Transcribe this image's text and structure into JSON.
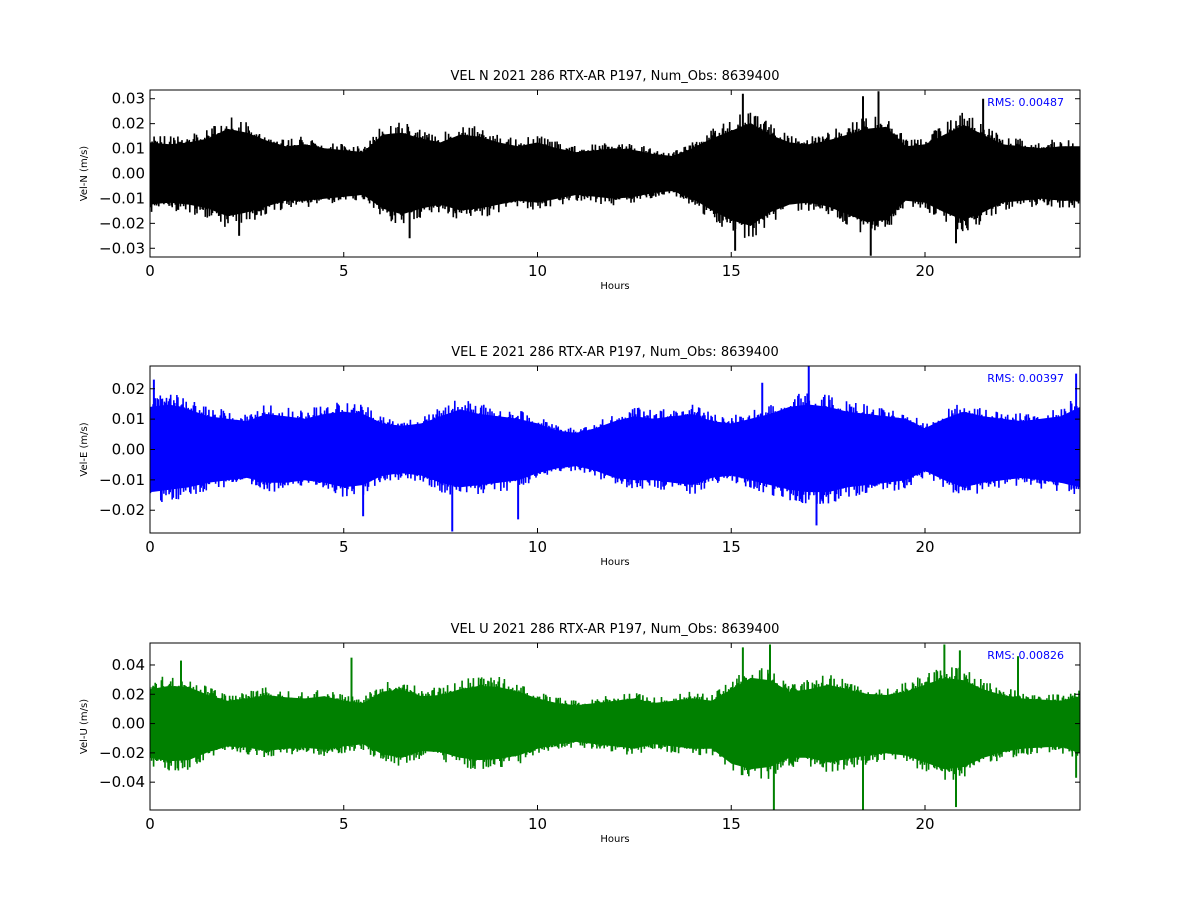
{
  "chart_data": [
    {
      "type": "line",
      "title": "VEL N 2021 286 RTX-AR  P197, Num_Obs: 8639400",
      "xlabel": "Hours",
      "ylabel": "Vel-N (m/s)",
      "xlim": [
        0,
        24
      ],
      "ylim": [
        -0.0335,
        0.0335
      ],
      "xticks": [
        0,
        5,
        10,
        15,
        20
      ],
      "xtick_labels": [
        "0",
        "5",
        "10",
        "15",
        "20"
      ],
      "yticks": [
        -0.03,
        -0.02,
        -0.01,
        0.0,
        0.01,
        0.02,
        0.03
      ],
      "ytick_labels": [
        "−0.03",
        "−0.02",
        "−0.01",
        "0.00",
        "0.01",
        "0.02",
        "0.03"
      ],
      "grid": false,
      "annotation": "RMS:  0.00487",
      "series": [
        {
          "color": "#000000",
          "x": [
            0,
            0.5,
            1,
            1.5,
            2,
            2.5,
            3,
            3.5,
            4,
            4.5,
            5,
            5.5,
            6,
            6.5,
            7,
            7.5,
            8,
            8.5,
            9,
            9.5,
            10,
            10.5,
            11,
            11.5,
            12,
            12.5,
            13,
            13.5,
            14,
            14.5,
            15,
            15.5,
            16,
            16.5,
            17,
            17.5,
            18,
            18.5,
            19,
            19.5,
            20,
            20.5,
            21,
            21.5,
            22,
            22.5,
            23,
            23.5,
            24
          ],
          "upper": [
            0.016,
            0.015,
            0.016,
            0.018,
            0.023,
            0.021,
            0.017,
            0.014,
            0.015,
            0.013,
            0.012,
            0.011,
            0.02,
            0.021,
            0.018,
            0.016,
            0.02,
            0.019,
            0.016,
            0.014,
            0.016,
            0.013,
            0.011,
            0.012,
            0.013,
            0.012,
            0.01,
            0.009,
            0.013,
            0.018,
            0.022,
            0.026,
            0.02,
            0.016,
            0.015,
            0.017,
            0.02,
            0.023,
            0.024,
            0.014,
            0.015,
            0.02,
            0.025,
            0.02,
            0.015,
            0.014,
            0.013,
            0.014,
            0.014
          ],
          "lower": [
            -0.016,
            -0.015,
            -0.016,
            -0.018,
            -0.022,
            -0.02,
            -0.017,
            -0.014,
            -0.014,
            -0.013,
            -0.012,
            -0.011,
            -0.018,
            -0.021,
            -0.018,
            -0.016,
            -0.019,
            -0.018,
            -0.016,
            -0.014,
            -0.015,
            -0.013,
            -0.011,
            -0.012,
            -0.013,
            -0.012,
            -0.01,
            -0.009,
            -0.013,
            -0.019,
            -0.024,
            -0.027,
            -0.02,
            -0.016,
            -0.015,
            -0.017,
            -0.021,
            -0.025,
            -0.024,
            -0.014,
            -0.015,
            -0.02,
            -0.024,
            -0.02,
            -0.015,
            -0.014,
            -0.013,
            -0.014,
            -0.014
          ],
          "spikes": [
            [
              15.3,
              0.032
            ],
            [
              15.1,
              -0.031
            ],
            [
              18.6,
              -0.033
            ],
            [
              18.8,
              0.033
            ],
            [
              18.4,
              0.031
            ],
            [
              20.8,
              -0.028
            ],
            [
              21.5,
              0.03
            ],
            [
              6.7,
              -0.026
            ],
            [
              2.3,
              -0.025
            ]
          ]
        }
      ]
    },
    {
      "type": "line",
      "title": "VEL E 2021 286 RTX-AR  P197, Num_Obs: 8639400",
      "xlabel": "Hours",
      "ylabel": "Vel-E (m/s)",
      "xlim": [
        0,
        24
      ],
      "ylim": [
        -0.0275,
        0.0275
      ],
      "xticks": [
        0,
        5,
        10,
        15,
        20
      ],
      "xtick_labels": [
        "0",
        "5",
        "10",
        "15",
        "20"
      ],
      "yticks": [
        -0.02,
        -0.01,
        0.0,
        0.01,
        0.02
      ],
      "ytick_labels": [
        "−0.02",
        "−0.01",
        "0.00",
        "0.01",
        "0.02"
      ],
      "grid": false,
      "annotation": "RMS:  0.00397",
      "series": [
        {
          "color": "#0000ff",
          "x": [
            0,
            0.5,
            1,
            1.5,
            2,
            2.5,
            3,
            3.5,
            4,
            4.5,
            5,
            5.5,
            6,
            6.5,
            7,
            7.5,
            8,
            8.5,
            9,
            9.5,
            10,
            10.5,
            11,
            11.5,
            12,
            12.5,
            13,
            13.5,
            14,
            14.5,
            15,
            15.5,
            16,
            16.5,
            17,
            17.5,
            18,
            18.5,
            19,
            19.5,
            20,
            20.5,
            21,
            21.5,
            22,
            22.5,
            23,
            23.5,
            24
          ],
          "upper": [
            0.018,
            0.019,
            0.017,
            0.014,
            0.013,
            0.012,
            0.015,
            0.014,
            0.013,
            0.015,
            0.016,
            0.015,
            0.011,
            0.01,
            0.011,
            0.014,
            0.017,
            0.015,
            0.014,
            0.013,
            0.011,
            0.008,
            0.007,
            0.009,
            0.012,
            0.014,
            0.013,
            0.014,
            0.015,
            0.012,
            0.011,
            0.013,
            0.015,
            0.018,
            0.019,
            0.018,
            0.016,
            0.015,
            0.014,
            0.013,
            0.009,
            0.013,
            0.016,
            0.014,
            0.013,
            0.012,
            0.013,
            0.014,
            0.018
          ],
          "lower": [
            -0.018,
            -0.017,
            -0.016,
            -0.014,
            -0.013,
            -0.012,
            -0.014,
            -0.014,
            -0.013,
            -0.014,
            -0.016,
            -0.015,
            -0.011,
            -0.01,
            -0.011,
            -0.014,
            -0.016,
            -0.015,
            -0.014,
            -0.013,
            -0.01,
            -0.008,
            -0.007,
            -0.009,
            -0.012,
            -0.013,
            -0.013,
            -0.014,
            -0.015,
            -0.012,
            -0.011,
            -0.013,
            -0.015,
            -0.017,
            -0.018,
            -0.018,
            -0.016,
            -0.015,
            -0.014,
            -0.013,
            -0.009,
            -0.013,
            -0.016,
            -0.014,
            -0.013,
            -0.012,
            -0.013,
            -0.014,
            -0.016
          ],
          "spikes": [
            [
              17.0,
              0.028
            ],
            [
              17.2,
              -0.025
            ],
            [
              7.8,
              -0.027
            ],
            [
              9.5,
              -0.023
            ],
            [
              5.5,
              -0.022
            ],
            [
              23.9,
              0.025
            ],
            [
              15.8,
              0.022
            ],
            [
              0.1,
              0.023
            ]
          ]
        }
      ]
    },
    {
      "type": "line",
      "title": "VEL U 2021 286 RTX-AR  P197, Num_Obs: 8639400",
      "xlabel": "Hours",
      "ylabel": "Vel-U (m/s)",
      "xlim": [
        0,
        24
      ],
      "ylim": [
        -0.059,
        0.055
      ],
      "xticks": [
        0,
        5,
        10,
        15,
        20
      ],
      "xtick_labels": [
        "0",
        "5",
        "10",
        "15",
        "20"
      ],
      "yticks": [
        -0.04,
        -0.02,
        0.0,
        0.02,
        0.04
      ],
      "ytick_labels": [
        "−0.04",
        "−0.02",
        "0.00",
        "0.02",
        "0.04"
      ],
      "grid": false,
      "annotation": "RMS:  0.00826",
      "series": [
        {
          "color": "#008000",
          "x": [
            0,
            0.5,
            1,
            1.5,
            2,
            2.5,
            3,
            3.5,
            4,
            4.5,
            5,
            5.5,
            6,
            6.5,
            7,
            7.5,
            8,
            8.5,
            9,
            9.5,
            10,
            10.5,
            11,
            11.5,
            12,
            12.5,
            13,
            13.5,
            14,
            14.5,
            15,
            15.5,
            16,
            16.5,
            17,
            17.5,
            18,
            18.5,
            19,
            19.5,
            20,
            20.5,
            21,
            21.5,
            22,
            22.5,
            23,
            23.5,
            24
          ],
          "upper": [
            0.03,
            0.033,
            0.032,
            0.025,
            0.02,
            0.022,
            0.025,
            0.023,
            0.022,
            0.024,
            0.02,
            0.018,
            0.028,
            0.03,
            0.024,
            0.025,
            0.03,
            0.033,
            0.032,
            0.028,
            0.022,
            0.018,
            0.016,
            0.018,
            0.02,
            0.022,
            0.018,
            0.02,
            0.022,
            0.02,
            0.03,
            0.04,
            0.038,
            0.028,
            0.03,
            0.034,
            0.03,
            0.026,
            0.025,
            0.028,
            0.034,
            0.04,
            0.038,
            0.03,
            0.025,
            0.022,
            0.021,
            0.02,
            0.024
          ],
          "lower": [
            -0.03,
            -0.033,
            -0.032,
            -0.025,
            -0.02,
            -0.021,
            -0.024,
            -0.022,
            -0.021,
            -0.023,
            -0.02,
            -0.018,
            -0.027,
            -0.03,
            -0.024,
            -0.025,
            -0.03,
            -0.032,
            -0.031,
            -0.028,
            -0.022,
            -0.018,
            -0.016,
            -0.018,
            -0.02,
            -0.022,
            -0.018,
            -0.02,
            -0.022,
            -0.022,
            -0.035,
            -0.04,
            -0.038,
            -0.03,
            -0.03,
            -0.034,
            -0.031,
            -0.028,
            -0.026,
            -0.028,
            -0.034,
            -0.04,
            -0.038,
            -0.03,
            -0.025,
            -0.022,
            -0.021,
            -0.02,
            -0.026
          ],
          "spikes": [
            [
              5.2,
              0.045
            ],
            [
              15.3,
              0.052
            ],
            [
              16.0,
              0.054
            ],
            [
              16.1,
              -0.059
            ],
            [
              18.4,
              -0.059
            ],
            [
              20.5,
              0.054
            ],
            [
              20.9,
              0.05
            ],
            [
              20.8,
              -0.057
            ],
            [
              22.4,
              0.046
            ],
            [
              0.8,
              0.043
            ],
            [
              23.9,
              -0.037
            ]
          ]
        }
      ]
    }
  ]
}
